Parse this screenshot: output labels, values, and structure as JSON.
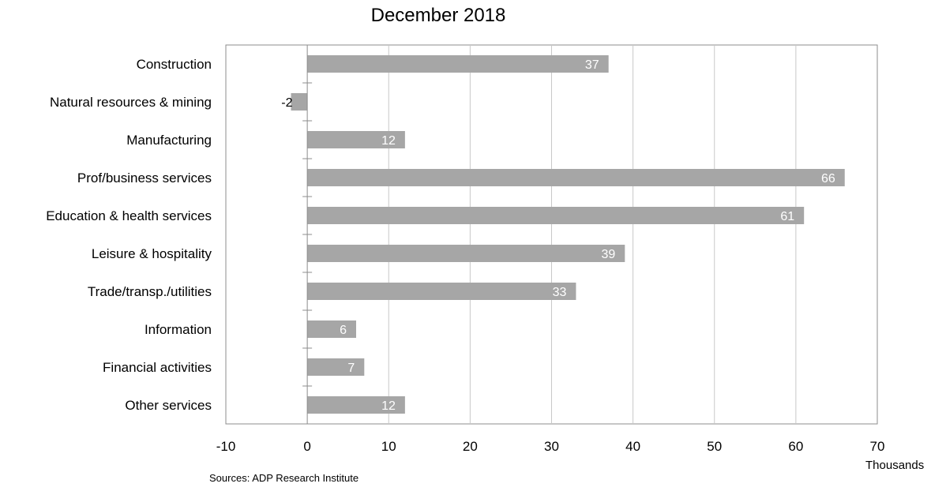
{
  "chart_data": {
    "type": "bar",
    "orientation": "horizontal",
    "title": "December 2018",
    "categories": [
      "Construction",
      "Natural resources & mining",
      "Manufacturing",
      "Prof/business services",
      "Education & health services",
      "Leisure & hospitality",
      "Trade/transp./utilities",
      "Information",
      "Financial activities",
      "Other services"
    ],
    "values": [
      37,
      -2,
      12,
      66,
      61,
      39,
      33,
      6,
      7,
      12
    ],
    "value_labels": [
      "37",
      "-2",
      "12",
      "66",
      "61",
      "39",
      "33",
      "6",
      "7",
      "12"
    ],
    "xlim": [
      -10,
      70
    ],
    "xticks": [
      -10,
      0,
      10,
      20,
      30,
      40,
      50,
      60,
      70
    ],
    "xlabel": "Thousands",
    "grid": "vertical",
    "bar_color": "#a6a6a6",
    "source": "Sources: ADP Research Institute"
  }
}
